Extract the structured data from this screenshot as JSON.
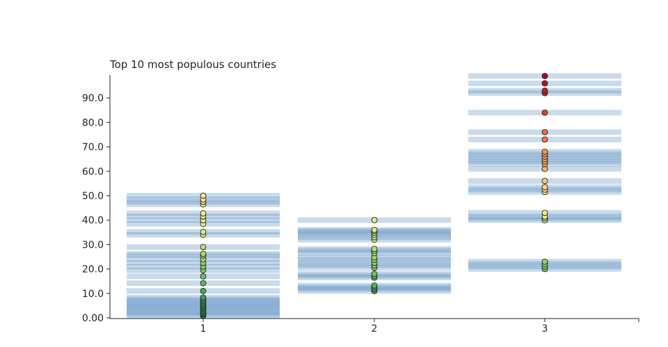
{
  "chart_data": {
    "type": "scatter",
    "title": "Top 10 most populous countries",
    "xlabel": "",
    "ylabel": "",
    "categories": [
      "1",
      "2",
      "3"
    ],
    "ylim": [
      0,
      100
    ],
    "yticks": [
      0,
      10,
      20,
      30,
      40,
      50,
      60,
      70,
      80,
      90
    ],
    "ytick_labels": [
      "0.00",
      "10.0",
      "20.0",
      "30.0",
      "40.0",
      "50.0",
      "60.0",
      "70.0",
      "80.0",
      "90.0"
    ],
    "grid": false,
    "colorscale": "RdYlGn reversed (green = low, red = high)",
    "band_color": "#5b8fc1",
    "marker_colors": [
      "#1a7837",
      "#4bb05c",
      "#a6d96a",
      "#d9ef8b",
      "#fee08b",
      "#fdae61",
      "#f46d43",
      "#d73027",
      "#a50026"
    ],
    "series": [
      {
        "category": "1",
        "values": [
          0.8,
          1.5,
          2.2,
          3.0,
          3.8,
          4.5,
          5.2,
          6.0,
          6.8,
          7.5,
          8.3,
          11.0,
          14.2,
          17.0,
          19.5,
          21.0,
          22.5,
          24.0,
          25.5,
          26.2,
          29.0,
          34.0,
          35.2,
          38.5,
          40.0,
          41.5,
          42.8,
          46.5,
          47.5,
          48.5,
          50.0
        ]
      },
      {
        "category": "2",
        "values": [
          11.0,
          11.8,
          12.5,
          13.2,
          16.5,
          17.2,
          18.0,
          20.5,
          21.5,
          22.5,
          23.8,
          24.8,
          26.5,
          27.5,
          28.2,
          32.0,
          33.0,
          34.0,
          34.8,
          35.5,
          36.0,
          40.0
        ]
      },
      {
        "category": "3",
        "values": [
          20.0,
          21.0,
          22.0,
          23.0,
          40.0,
          40.8,
          41.5,
          43.0,
          51.5,
          52.5,
          53.5,
          56.0,
          61.0,
          63.0,
          64.0,
          65.0,
          66.0,
          67.0,
          68.0,
          73.0,
          76.0,
          84.0,
          92.0,
          93.0,
          96.0,
          99.0
        ]
      }
    ]
  }
}
